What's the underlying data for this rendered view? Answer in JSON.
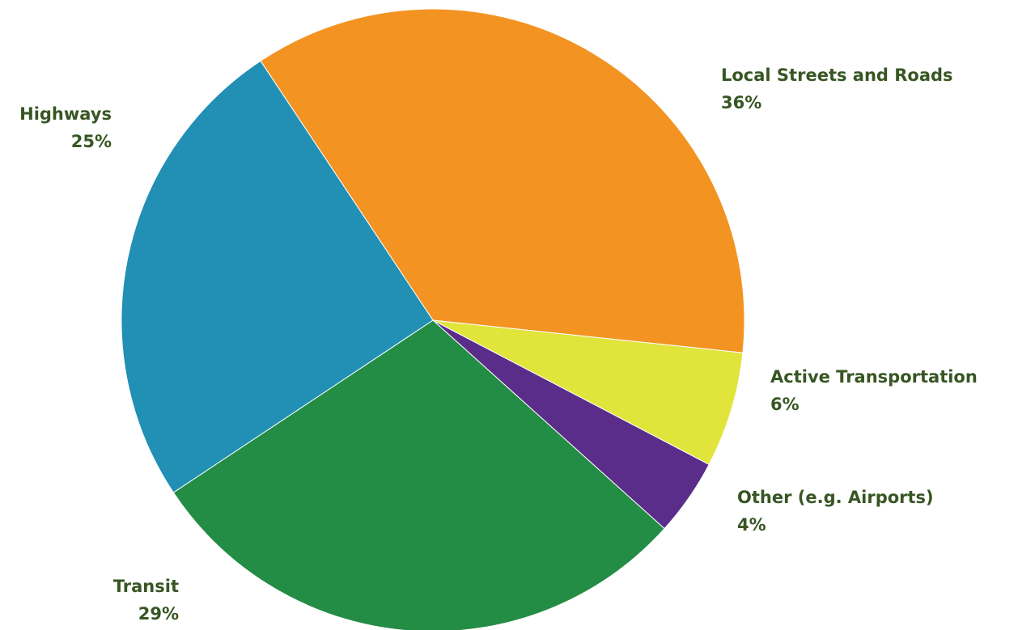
{
  "chart_data": {
    "type": "pie",
    "title": "",
    "label_color": "#375623",
    "slices": [
      {
        "label": "Local Streets and Roads",
        "value": 36,
        "display": "36%",
        "color": "#F39322"
      },
      {
        "label": "Active Transportation",
        "value": 6,
        "display": "6%",
        "color": "#E1E43B"
      },
      {
        "label": "Other (e.g. Airports)",
        "value": 4,
        "display": "4%",
        "color": "#5A2D8A"
      },
      {
        "label": "Transit",
        "value": 29,
        "display": "29%",
        "color": "#238C45"
      },
      {
        "label": "Highways",
        "value": 25,
        "display": "25%",
        "color": "#228FB4"
      }
    ]
  }
}
